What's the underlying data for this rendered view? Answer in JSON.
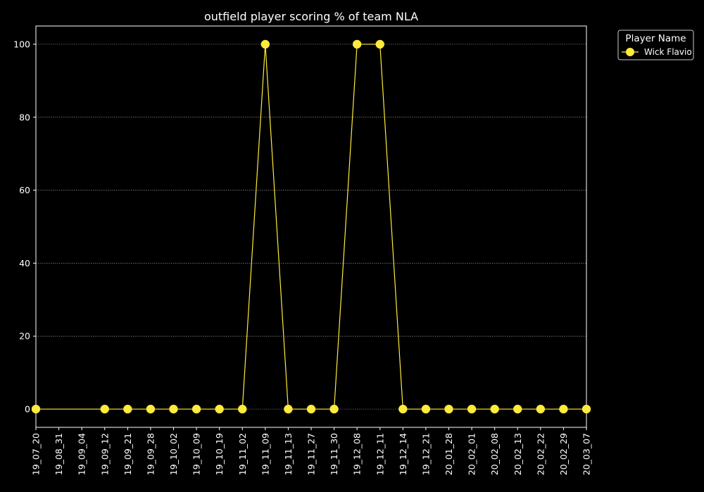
{
  "chart_data": {
    "type": "line",
    "title": "outfield player scoring % of team NLA",
    "xlabel": "",
    "ylabel": "",
    "categories": [
      "19_07_20",
      "19_08_31",
      "19_09_04",
      "19_09_12",
      "19_09_21",
      "19_09_28",
      "19_10_02",
      "19_10_09",
      "19_10_19",
      "19_11_02",
      "19_11_09",
      "19_11_13",
      "19_11_27",
      "19_11_30",
      "19_12_08",
      "19_12_11",
      "19_12_14",
      "19_12_21",
      "20_01_28",
      "20_02_01",
      "20_02_08",
      "20_02_13",
      "20_02_22",
      "20_02_29",
      "20_03_07"
    ],
    "ylim": [
      -5,
      105
    ],
    "yticks": [
      0,
      20,
      40,
      60,
      80,
      100
    ],
    "grid": true,
    "legend": {
      "title": "Player Name",
      "placement": "upper-right-outside"
    },
    "series": [
      {
        "name": "Wick Flavio",
        "color": "#ffeb3b",
        "values": [
          0,
          null,
          null,
          0,
          0,
          0,
          0,
          0,
          0,
          0,
          100,
          0,
          0,
          0,
          100,
          100,
          0,
          0,
          0,
          0,
          0,
          0,
          0,
          0,
          0
        ]
      }
    ]
  }
}
